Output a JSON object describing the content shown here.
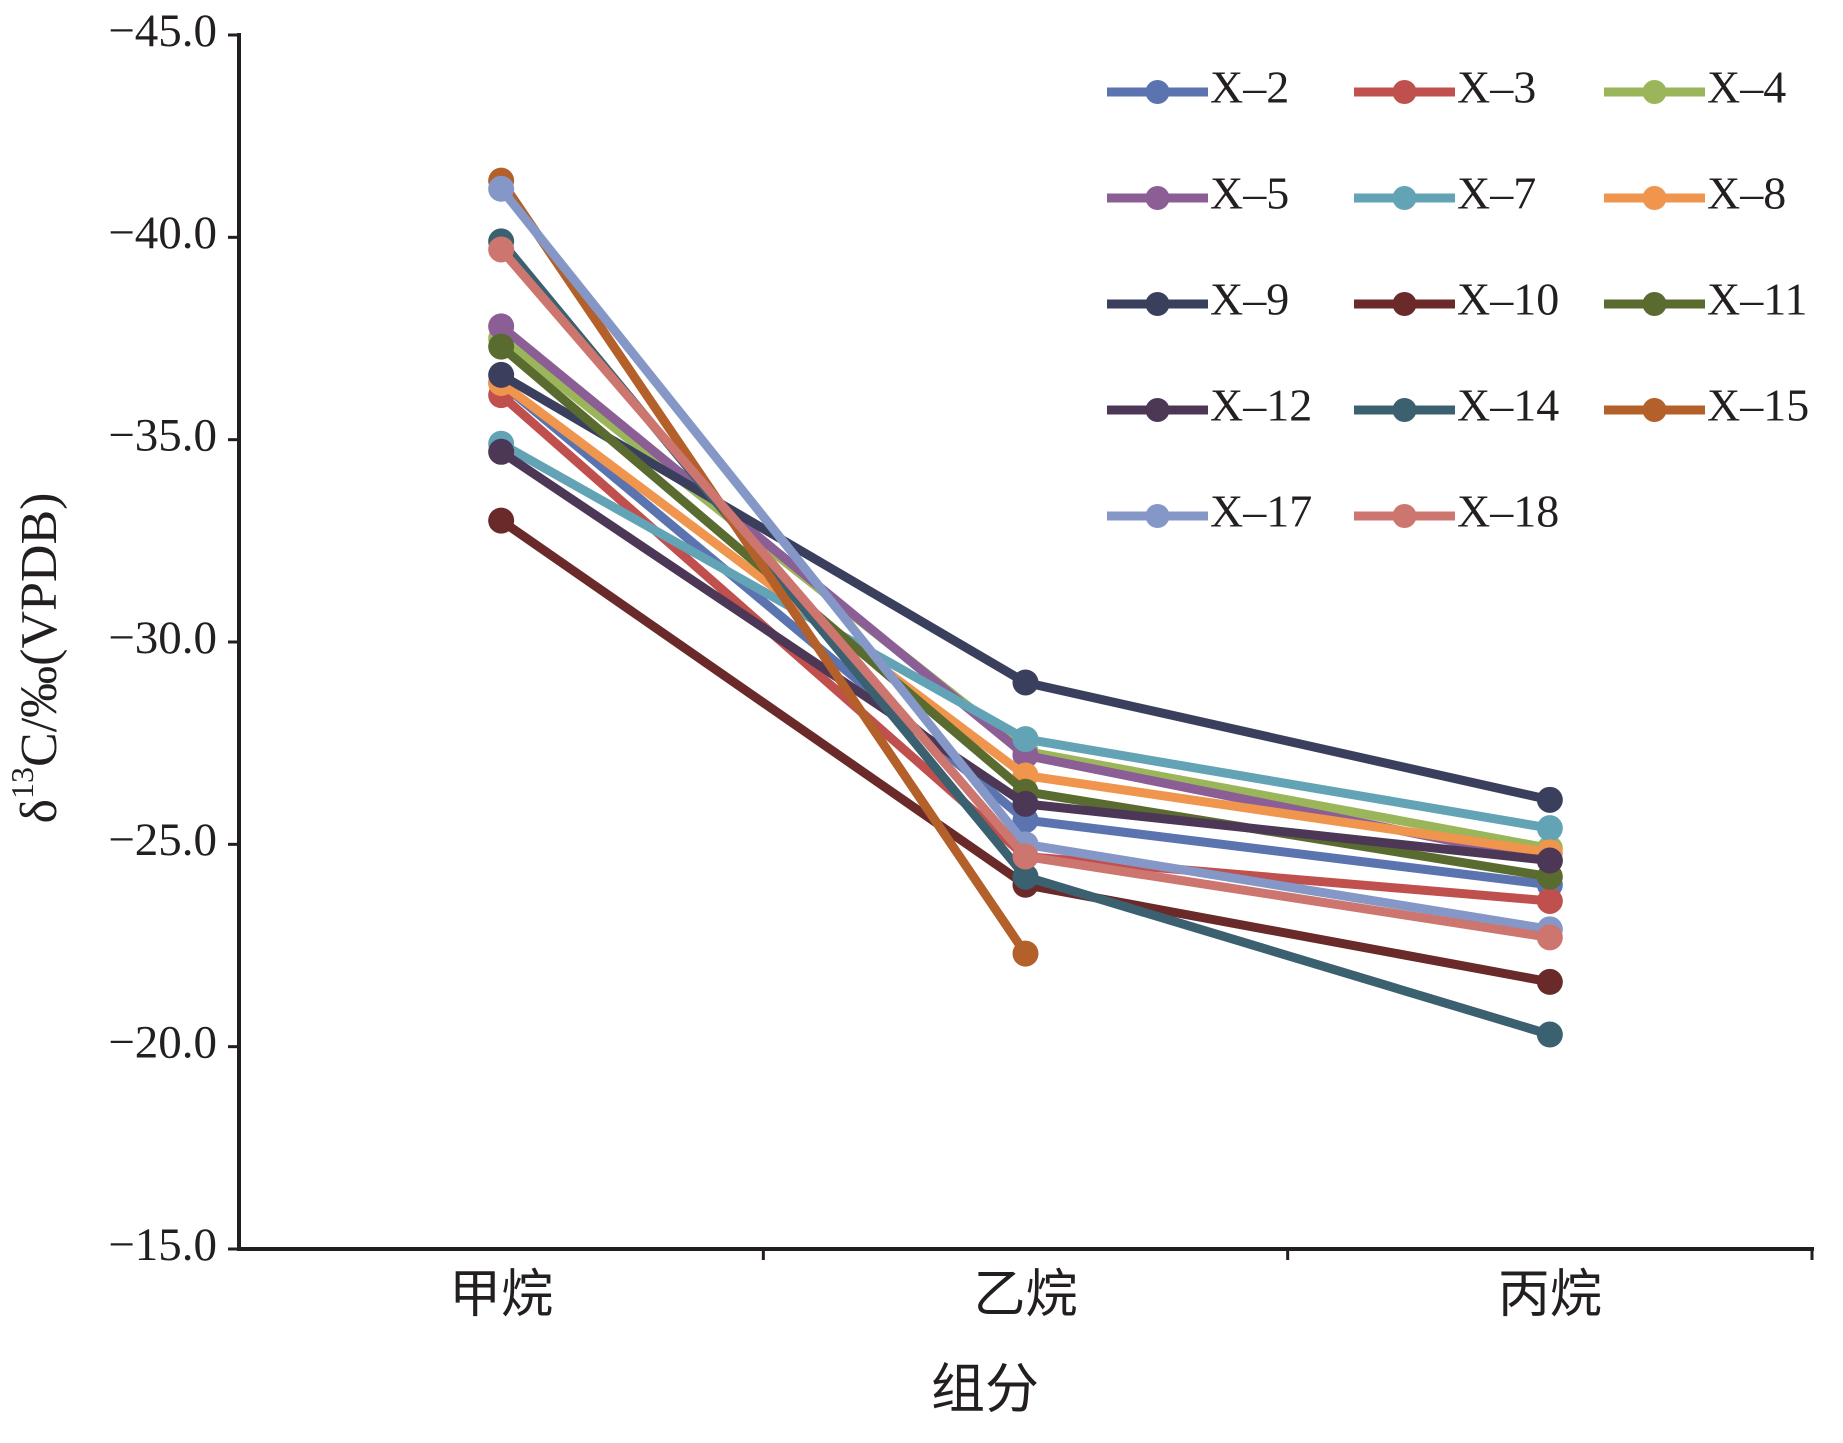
{
  "chart_data": {
    "type": "line",
    "categories": [
      "甲烷",
      "乙烷",
      "丙烷"
    ],
    "xlabel": "组分",
    "ylabel": "δ13C/‰(VPDB)",
    "ylim": [
      -45,
      -15
    ],
    "y_inverted": true,
    "yticks": [
      -45,
      -40,
      -35,
      -30,
      -25,
      -20,
      -15
    ],
    "ytick_labels": [
      "−45.0",
      "−40.0",
      "−35.0",
      "−30.0",
      "−25.0",
      "−20.0",
      "−15.0"
    ],
    "grid": false,
    "legend": {
      "placement": "top-right",
      "columns": 3
    },
    "series": [
      {
        "name": "X–2",
        "color": "#5B74AF",
        "values": [
          -36.4,
          -25.6,
          -24.0
        ]
      },
      {
        "name": "X–3",
        "color": "#C0504D",
        "values": [
          -36.1,
          -24.7,
          -23.6
        ]
      },
      {
        "name": "X–4",
        "color": "#9BB55B",
        "values": [
          -37.5,
          -27.3,
          -24.9
        ]
      },
      {
        "name": "X–5",
        "color": "#8B5E96",
        "values": [
          -37.8,
          -27.2,
          -24.6
        ]
      },
      {
        "name": "X–7",
        "color": "#63A3B6",
        "values": [
          -34.9,
          -27.6,
          -25.4
        ]
      },
      {
        "name": "X–8",
        "color": "#F0954D",
        "values": [
          -36.4,
          -26.7,
          -24.8
        ]
      },
      {
        "name": "X–9",
        "color": "#3B3F5E",
        "values": [
          -36.6,
          -29.0,
          -26.1
        ]
      },
      {
        "name": "X–10",
        "color": "#6B2A2A",
        "values": [
          -33.0,
          -24.0,
          -21.6
        ]
      },
      {
        "name": "X–11",
        "color": "#5A6B30",
        "values": [
          -37.3,
          -26.3,
          -24.2
        ]
      },
      {
        "name": "X–12",
        "color": "#4C3756",
        "values": [
          -34.7,
          -26.0,
          -24.6
        ]
      },
      {
        "name": "X–14",
        "color": "#3B6070",
        "values": [
          -39.9,
          -24.2,
          -20.3
        ]
      },
      {
        "name": "X–15",
        "color": "#B3602A",
        "values": [
          -41.4,
          -22.3,
          null
        ]
      },
      {
        "name": "X–17",
        "color": "#8497C6",
        "values": [
          -41.2,
          -25.0,
          -22.9
        ]
      },
      {
        "name": "X–18",
        "color": "#CD7670",
        "values": [
          -39.7,
          -24.7,
          -22.7
        ]
      }
    ]
  }
}
